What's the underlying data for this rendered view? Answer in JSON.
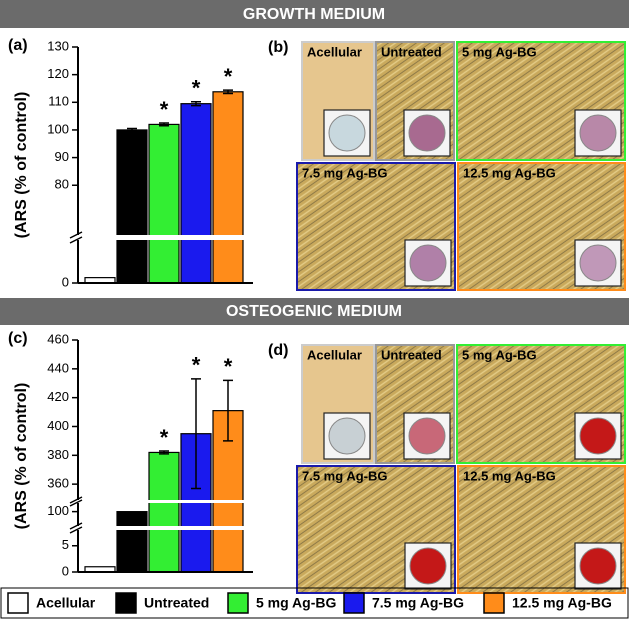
{
  "headers": [
    "GROWTH MEDIUM",
    "OSTEOGENIC MEDIUM"
  ],
  "legend": [
    {
      "name": "Acellular",
      "color": "#ffffff"
    },
    {
      "name": "Untreated",
      "color": "#000000"
    },
    {
      "name": "5 mg Ag-BG",
      "color": "#33ee33"
    },
    {
      "name": "7.5 mg Ag-BG",
      "color": "#1a1aee"
    },
    {
      "name": "12.5 mg Ag-BG",
      "color": "#ff8c1a"
    }
  ],
  "chart_data": [
    {
      "type": "bar",
      "label": "(a)",
      "y_label": "(ARS (% of control)",
      "values": [
        1,
        100,
        102,
        109.5,
        113.8
      ],
      "errors": [
        0,
        0.5,
        0.5,
        0.7,
        0.6
      ],
      "significance": [
        null,
        null,
        "*",
        "*",
        "*"
      ],
      "ylim": [
        0,
        130
      ],
      "ybreaks": [
        [
          8,
          62
        ]
      ],
      "yticks": [
        0,
        80,
        90,
        100,
        110,
        120,
        130
      ]
    },
    {
      "type": "bar",
      "label": "(c)",
      "y_label": "(ARS (% of control)",
      "values": [
        1,
        100,
        382,
        395,
        411
      ],
      "errors": [
        0,
        0,
        1,
        38,
        21
      ],
      "significance": [
        null,
        null,
        "*",
        "*",
        "*"
      ],
      "ylim": [
        0,
        460
      ],
      "ybreaks": [
        [
          8,
          95
        ],
        [
          103,
          349
        ]
      ],
      "yticks": [
        0,
        5,
        100,
        360,
        380,
        400,
        420,
        440,
        460
      ]
    }
  ],
  "panels": [
    {
      "label": "(b)",
      "images": [
        {
          "label": "Acellular",
          "border": "#cccccc",
          "well_color": "#c8d8de"
        },
        {
          "label": "Untreated",
          "border": "#999999",
          "well_color": "#a86a90"
        },
        {
          "label": "5 mg Ag-BG",
          "border": "#33ee33",
          "well_color": "#b888a8"
        },
        {
          "label": "7.5 mg Ag-BG",
          "border": "#1a1aaa",
          "well_color": "#b080a8"
        },
        {
          "label": "12.5 mg Ag-BG",
          "border": "#ff8c1a",
          "well_color": "#c098b8"
        }
      ]
    },
    {
      "label": "(d)",
      "images": [
        {
          "label": "Acellular",
          "border": "#cccccc",
          "well_color": "#c8d0d4"
        },
        {
          "label": "Untreated",
          "border": "#999999",
          "well_color": "#c86878"
        },
        {
          "label": "5 mg Ag-BG",
          "border": "#33ee33",
          "well_color": "#c41818"
        },
        {
          "label": "7.5 mg Ag-BG",
          "border": "#1a1aaa",
          "well_color": "#c41818"
        },
        {
          "label": "12.5 mg Ag-BG",
          "border": "#ff8c1a",
          "well_color": "#c41818"
        }
      ]
    }
  ]
}
